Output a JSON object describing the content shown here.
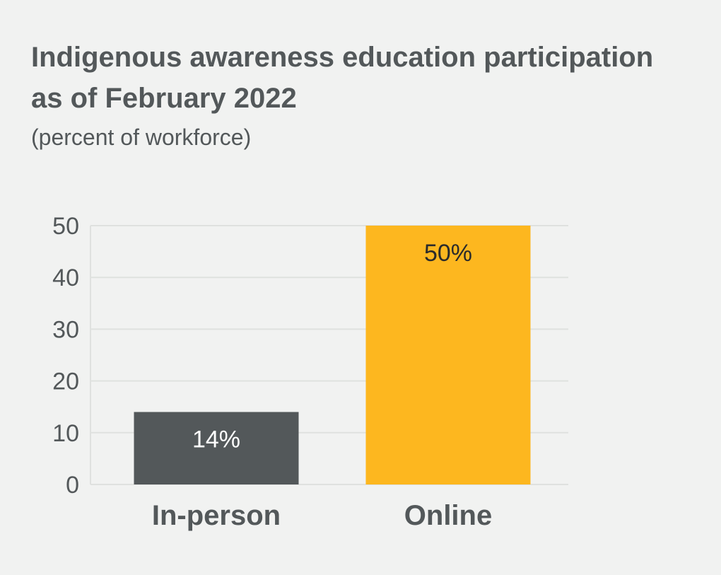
{
  "chart_data": {
    "type": "bar",
    "title": "Indigenous awareness education participation as of February 2022",
    "subtitle": "(percent of workforce)",
    "categories": [
      "In-person",
      "Online"
    ],
    "values": [
      14,
      50
    ],
    "data_labels": [
      "14%",
      "50%"
    ],
    "yticks": [
      0,
      10,
      20,
      30,
      40,
      50
    ],
    "ylim": [
      0,
      50
    ],
    "xlabel": "",
    "ylabel": "",
    "grid": true,
    "colors": [
      "#53585a",
      "#fdb71f"
    ],
    "label_colors": [
      "#ffffff",
      "#2b2b2b"
    ],
    "grid_color": "#dfe1df"
  }
}
